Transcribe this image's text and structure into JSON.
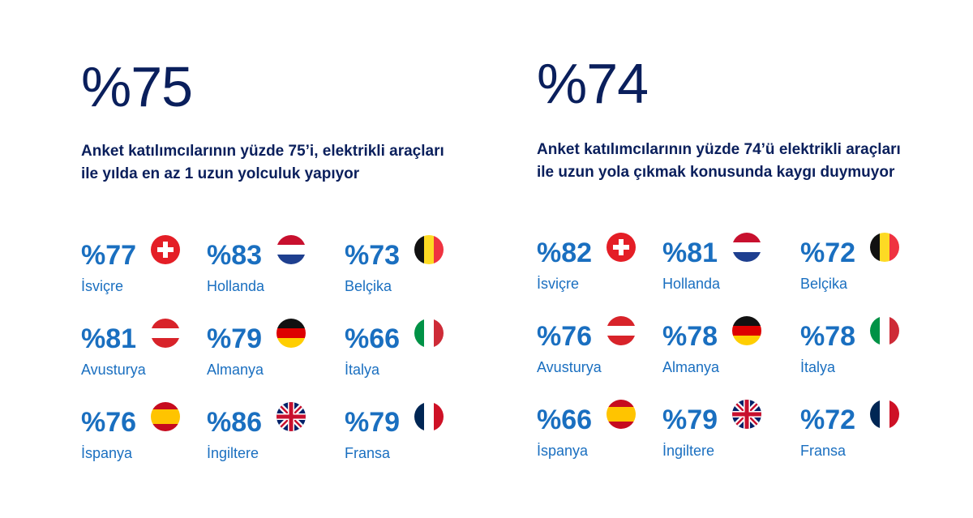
{
  "panels": [
    {
      "big": "%75",
      "desc": "Anket katılımcılarının yüzde 75’i, elektrikli araçları ile yılda en az 1 uzun yolculuk yapıyor",
      "items": [
        {
          "pct": "%77",
          "country": "İsviçre",
          "flag": "switzerland-flag-icon"
        },
        {
          "pct": "%83",
          "country": "Hollanda",
          "flag": "netherlands-flag-icon"
        },
        {
          "pct": "%73",
          "country": "Belçika",
          "flag": "belgium-flag-icon"
        },
        {
          "pct": "%81",
          "country": "Avusturya",
          "flag": "austria-flag-icon"
        },
        {
          "pct": "%79",
          "country": "Almanya",
          "flag": "germany-flag-icon"
        },
        {
          "pct": "%66",
          "country": "İtalya",
          "flag": "italy-flag-icon"
        },
        {
          "pct": "%76",
          "country": "İspanya",
          "flag": "spain-flag-icon"
        },
        {
          "pct": "%86",
          "country": "İngiltere",
          "flag": "uk-flag-icon"
        },
        {
          "pct": "%79",
          "country": "Fransa",
          "flag": "france-flag-icon"
        }
      ]
    },
    {
      "big": "%74",
      "desc": "Anket katılımcılarının yüzde 74’ü elektrikli araçları ile uzun yola çıkmak konusunda kaygı duymuyor",
      "items": [
        {
          "pct": "%82",
          "country": "İsviçre",
          "flag": "switzerland-flag-icon"
        },
        {
          "pct": "%81",
          "country": "Hollanda",
          "flag": "netherlands-flag-icon"
        },
        {
          "pct": "%72",
          "country": "Belçika",
          "flag": "belgium-flag-icon"
        },
        {
          "pct": "%76",
          "country": "Avusturya",
          "flag": "austria-flag-icon"
        },
        {
          "pct": "%78",
          "country": "Almanya",
          "flag": "germany-flag-icon"
        },
        {
          "pct": "%78",
          "country": "İtalya",
          "flag": "italy-flag-icon"
        },
        {
          "pct": "%66",
          "country": "İspanya",
          "flag": "spain-flag-icon"
        },
        {
          "pct": "%79",
          "country": "İngiltere",
          "flag": "uk-flag-icon"
        },
        {
          "pct": "%72",
          "country": "Fransa",
          "flag": "france-flag-icon"
        }
      ]
    }
  ],
  "colors": {
    "navy": "#0a1f5c",
    "blue": "#1a6fc0"
  }
}
